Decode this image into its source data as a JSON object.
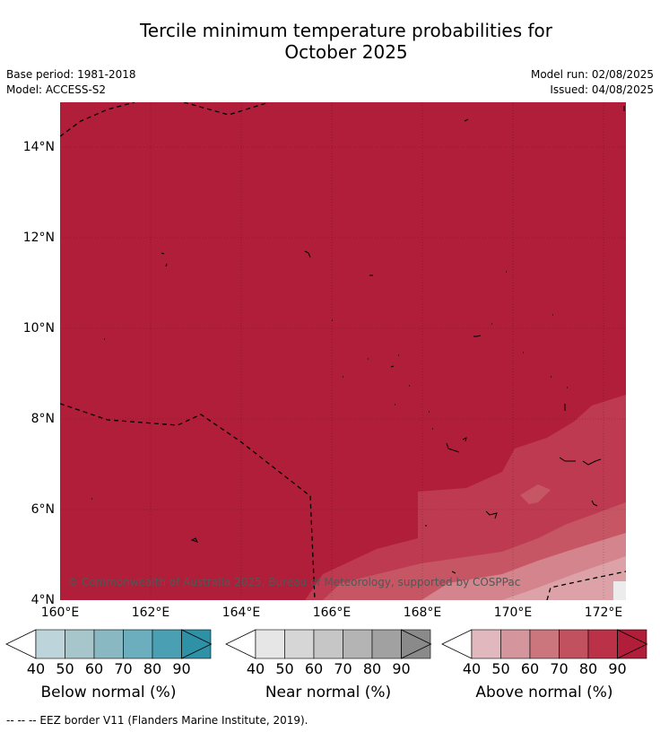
{
  "title_line1": "Tercile minimum temperature probabilities for",
  "title_line2": "October 2025",
  "base_period": "Base period: 1981-2018",
  "model": "Model: ACCESS-S2",
  "model_run": "Model run: 02/08/2025",
  "issued": "Issued: 04/08/2025",
  "copyright": "© Commonwealth of Australia 2025, Bureau of Meteorology, supported by COSPPac",
  "lat_labels": [
    "14°N",
    "12°N",
    "10°N",
    "8°N",
    "6°N",
    "4°N"
  ],
  "lon_labels": [
    "160°E",
    "162°E",
    "164°E",
    "166°E",
    "168°E",
    "170°E",
    "172°E"
  ],
  "colorbars": [
    {
      "label": "Below normal (%)",
      "ticks": [
        "40",
        "50",
        "60",
        "70",
        "80",
        "90"
      ],
      "colors": [
        "#bdd4da",
        "#a6c6cc",
        "#89b7c2",
        "#6caebd",
        "#4b9fb2",
        "#2f91a6"
      ]
    },
    {
      "label": "Near normal (%)",
      "ticks": [
        "40",
        "50",
        "60",
        "70",
        "80",
        "90"
      ],
      "colors": [
        "#e6e6e6",
        "#d6d6d6",
        "#c6c6c6",
        "#b4b4b4",
        "#a1a1a1",
        "#8a8a8a"
      ]
    },
    {
      "label": "Above normal (%)",
      "ticks": [
        "40",
        "50",
        "60",
        "70",
        "80",
        "90"
      ],
      "colors": [
        "#e1b8bd",
        "#d5959c",
        "#cb757d",
        "#c25160",
        "#bb3148",
        "#b01e3a"
      ]
    }
  ],
  "footnote": "--  --  -- EEZ border V11 (Flanders Marine Institute, 2019).",
  "map_colors": {
    "base": "#b01e3a",
    "band80": "#bd3a51",
    "band70": "#c75665",
    "band60": "#d3848d",
    "band50": "#dda2a8"
  }
}
